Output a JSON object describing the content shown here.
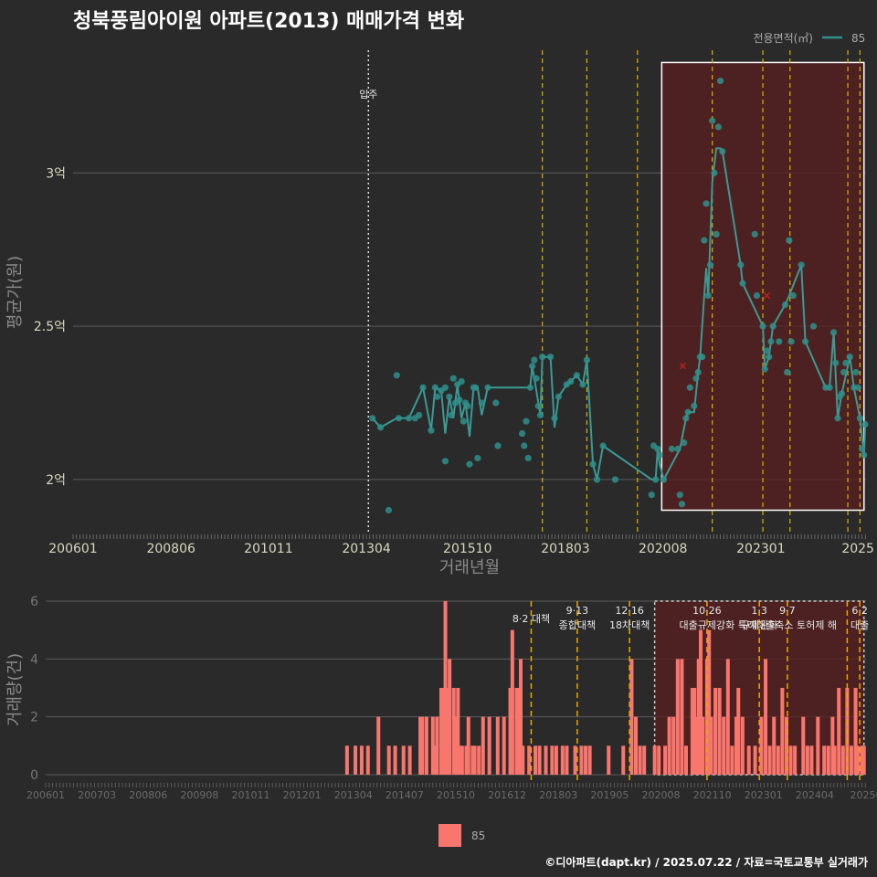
{
  "title": "청북풍림아이원 아파트(2013) 매매가격 변화",
  "legend": {
    "title": "전용면적(㎡)",
    "series_label": "85",
    "line_color": "#2f8f8b"
  },
  "colors": {
    "bg": "#2a2a2b",
    "point": "#2f8f8b",
    "bar": "#f8766d",
    "highlight": "#5a1f1f",
    "vline": "#d4b400",
    "grid": "#5a5a5a"
  },
  "credit": "©디아파트(dapt.kr) / 2025.07.22 / 자료=국토교통부 실거래가",
  "chart_data": [
    {
      "type": "scatter",
      "title": "청북풍림아이원 아파트(2013) 매매가격 변화",
      "xlabel": "거래년월",
      "ylabel": "평균가(원)",
      "x_ticks": [
        "200601",
        "200806",
        "201011",
        "201304",
        "201510",
        "201803",
        "202008",
        "202301",
        "2025"
      ],
      "y_ticks": [
        {
          "v": 2.0,
          "label": "2억"
        },
        {
          "v": 2.5,
          "label": "2.5억"
        },
        {
          "v": 3.0,
          "label": "3억"
        }
      ],
      "ylim": [
        1.83,
        3.4
      ],
      "xlim": [
        2006.0,
        2025.6
      ],
      "move_in": {
        "x": 2013.3,
        "label": "입주"
      },
      "policy_lines": [
        2017.6,
        2018.7,
        2019.95,
        2021.8,
        2023.05,
        2023.72,
        2025.15,
        2025.45
      ],
      "highlight": {
        "x0": 2020.55,
        "x1": 2025.55,
        "y0": 1.9,
        "y1": 3.36
      },
      "red_marks": [
        {
          "x": 2021.07,
          "y": 2.37
        },
        {
          "x": 2023.15,
          "y": 2.6
        }
      ],
      "points": [
        [
          2013.4,
          2.2
        ],
        [
          2013.6,
          2.17
        ],
        [
          2013.8,
          1.9
        ],
        [
          2014.0,
          2.34
        ],
        [
          2014.05,
          2.2
        ],
        [
          2014.3,
          2.2
        ],
        [
          2014.45,
          2.2
        ],
        [
          2014.55,
          2.21
        ],
        [
          2014.65,
          2.3
        ],
        [
          2014.85,
          2.16
        ],
        [
          2014.95,
          2.3
        ],
        [
          2015.0,
          2.27
        ],
        [
          2015.1,
          2.29
        ],
        [
          2015.2,
          2.3
        ],
        [
          2015.2,
          2.06
        ],
        [
          2015.3,
          2.27
        ],
        [
          2015.35,
          2.21
        ],
        [
          2015.4,
          2.33
        ],
        [
          2015.45,
          2.25
        ],
        [
          2015.5,
          2.31
        ],
        [
          2015.55,
          2.26
        ],
        [
          2015.6,
          2.32
        ],
        [
          2015.65,
          2.19
        ],
        [
          2015.7,
          2.25
        ],
        [
          2015.75,
          2.24
        ],
        [
          2015.8,
          2.05
        ],
        [
          2015.9,
          2.3
        ],
        [
          2015.95,
          2.3
        ],
        [
          2016.0,
          2.07
        ],
        [
          2016.1,
          2.25
        ],
        [
          2016.25,
          2.3
        ],
        [
          2016.5,
          2.11
        ],
        [
          2016.45,
          2.25
        ],
        [
          2017.1,
          2.15
        ],
        [
          2017.15,
          2.11
        ],
        [
          2017.25,
          2.07
        ],
        [
          2017.2,
          2.19
        ],
        [
          2017.3,
          2.3
        ],
        [
          2017.35,
          2.37
        ],
        [
          2017.4,
          2.39
        ],
        [
          2017.45,
          2.33
        ],
        [
          2017.5,
          2.24
        ],
        [
          2017.55,
          2.21
        ],
        [
          2017.6,
          2.4
        ],
        [
          2017.8,
          2.4
        ],
        [
          2017.9,
          2.2
        ],
        [
          2018.0,
          2.27
        ],
        [
          2018.2,
          2.31
        ],
        [
          2018.3,
          2.32
        ],
        [
          2018.45,
          2.34
        ],
        [
          2018.6,
          2.31
        ],
        [
          2018.7,
          2.39
        ],
        [
          2018.85,
          2.05
        ],
        [
          2018.95,
          2.0
        ],
        [
          2019.1,
          2.11
        ],
        [
          2019.4,
          2.0
        ],
        [
          2020.3,
          1.95
        ],
        [
          2020.35,
          2.11
        ],
        [
          2020.4,
          2.0
        ],
        [
          2020.45,
          2.1
        ],
        [
          2020.5,
          2.08
        ],
        [
          2020.6,
          2.0
        ],
        [
          2020.8,
          2.1
        ],
        [
          2020.95,
          2.1
        ],
        [
          2021.0,
          1.95
        ],
        [
          2021.05,
          1.92
        ],
        [
          2021.1,
          2.12
        ],
        [
          2021.15,
          2.2
        ],
        [
          2021.2,
          2.22
        ],
        [
          2021.25,
          2.3
        ],
        [
          2021.35,
          2.24
        ],
        [
          2021.4,
          2.33
        ],
        [
          2021.45,
          2.35
        ],
        [
          2021.5,
          2.4
        ],
        [
          2021.55,
          2.4
        ],
        [
          2021.6,
          2.78
        ],
        [
          2021.65,
          2.9
        ],
        [
          2021.7,
          2.6
        ],
        [
          2021.75,
          2.7
        ],
        [
          2021.8,
          3.17
        ],
        [
          2021.85,
          3.0
        ],
        [
          2021.9,
          2.8
        ],
        [
          2021.95,
          3.15
        ],
        [
          2022.0,
          3.3
        ],
        [
          2022.05,
          3.07
        ],
        [
          2022.5,
          2.7
        ],
        [
          2022.55,
          2.64
        ],
        [
          2022.85,
          2.8
        ],
        [
          2022.9,
          2.6
        ],
        [
          2023.05,
          2.5
        ],
        [
          2023.1,
          2.36
        ],
        [
          2023.15,
          2.42
        ],
        [
          2023.2,
          2.4
        ],
        [
          2023.25,
          2.45
        ],
        [
          2023.3,
          2.5
        ],
        [
          2023.45,
          2.45
        ],
        [
          2023.6,
          2.57
        ],
        [
          2023.65,
          2.35
        ],
        [
          2023.7,
          2.78
        ],
        [
          2023.75,
          2.45
        ],
        [
          2023.8,
          2.6
        ],
        [
          2024.0,
          2.7
        ],
        [
          2024.1,
          2.45
        ],
        [
          2024.3,
          2.5
        ],
        [
          2024.6,
          2.3
        ],
        [
          2024.7,
          2.3
        ],
        [
          2024.8,
          2.48
        ],
        [
          2024.85,
          2.38
        ],
        [
          2024.9,
          2.2
        ],
        [
          2024.95,
          2.27
        ],
        [
          2025.0,
          2.28
        ],
        [
          2025.05,
          2.35
        ],
        [
          2025.1,
          2.38
        ],
        [
          2025.2,
          2.4
        ],
        [
          2025.3,
          2.3
        ],
        [
          2025.35,
          2.35
        ],
        [
          2025.4,
          2.3
        ],
        [
          2025.45,
          2.2
        ],
        [
          2025.5,
          2.1
        ],
        [
          2025.55,
          2.08
        ],
        [
          2025.58,
          2.18
        ]
      ],
      "line": [
        [
          2013.4,
          2.2
        ],
        [
          2013.6,
          2.17
        ],
        [
          2014.0,
          2.2
        ],
        [
          2014.3,
          2.2
        ],
        [
          2014.65,
          2.3
        ],
        [
          2014.85,
          2.16
        ],
        [
          2014.95,
          2.3
        ],
        [
          2015.1,
          2.29
        ],
        [
          2015.2,
          2.15
        ],
        [
          2015.3,
          2.27
        ],
        [
          2015.4,
          2.2
        ],
        [
          2015.5,
          2.31
        ],
        [
          2015.6,
          2.2
        ],
        [
          2015.7,
          2.25
        ],
        [
          2015.8,
          2.14
        ],
        [
          2015.9,
          2.3
        ],
        [
          2016.0,
          2.3
        ],
        [
          2016.1,
          2.21
        ],
        [
          2016.25,
          2.3
        ],
        [
          2017.3,
          2.3
        ],
        [
          2017.35,
          2.37
        ],
        [
          2017.45,
          2.29
        ],
        [
          2017.55,
          2.21
        ],
        [
          2017.6,
          2.4
        ],
        [
          2017.8,
          2.4
        ],
        [
          2017.9,
          2.17
        ],
        [
          2018.0,
          2.27
        ],
        [
          2018.2,
          2.31
        ],
        [
          2018.3,
          2.32
        ],
        [
          2018.45,
          2.34
        ],
        [
          2018.6,
          2.31
        ],
        [
          2018.7,
          2.39
        ],
        [
          2018.85,
          2.05
        ],
        [
          2018.95,
          2.0
        ],
        [
          2019.1,
          2.11
        ],
        [
          2020.3,
          2.0
        ],
        [
          2020.4,
          2.0
        ],
        [
          2020.45,
          2.1
        ],
        [
          2020.5,
          2.05
        ],
        [
          2020.6,
          2.0
        ],
        [
          2021.0,
          2.1
        ],
        [
          2021.15,
          2.2
        ],
        [
          2021.2,
          2.22
        ],
        [
          2021.35,
          2.22
        ],
        [
          2021.45,
          2.35
        ],
        [
          2021.5,
          2.4
        ],
        [
          2021.6,
          2.6
        ],
        [
          2021.65,
          2.69
        ],
        [
          2021.7,
          2.6
        ],
        [
          2021.8,
          2.97
        ],
        [
          2021.9,
          3.08
        ],
        [
          2022.0,
          3.08
        ],
        [
          2022.05,
          3.07
        ],
        [
          2022.5,
          2.7
        ],
        [
          2022.55,
          2.64
        ],
        [
          2023.05,
          2.5
        ],
        [
          2023.1,
          2.36
        ],
        [
          2023.2,
          2.4
        ],
        [
          2023.3,
          2.5
        ],
        [
          2023.6,
          2.57
        ],
        [
          2023.7,
          2.6
        ],
        [
          2024.0,
          2.7
        ],
        [
          2024.1,
          2.45
        ],
        [
          2024.6,
          2.3
        ],
        [
          2024.7,
          2.3
        ],
        [
          2024.8,
          2.48
        ],
        [
          2024.9,
          2.2
        ],
        [
          2025.0,
          2.28
        ],
        [
          2025.2,
          2.4
        ],
        [
          2025.3,
          2.3
        ],
        [
          2025.45,
          2.2
        ],
        [
          2025.55,
          2.08
        ],
        [
          2025.58,
          2.18
        ]
      ]
    },
    {
      "type": "bar",
      "xlabel": "",
      "ylabel": "거래량(건)",
      "x_ticks": [
        "200601",
        "200703",
        "200806",
        "200908",
        "201011",
        "201201",
        "201304",
        "201407",
        "201510",
        "201612",
        "201803",
        "201905",
        "202008",
        "202110",
        "202301",
        "202404",
        "20250"
      ],
      "y_ticks": [
        0,
        2,
        4,
        6
      ],
      "ylim": [
        0,
        6
      ],
      "xlim": [
        2006.0,
        2025.6
      ],
      "highlight": {
        "x0": 2020.55,
        "x1": 2025.55,
        "y0": 0,
        "y1": 6
      },
      "policy_lines": [
        2017.6,
        2018.7,
        2019.95,
        2021.8,
        2023.05,
        2023.72,
        2025.15,
        2025.45
      ],
      "annotations": [
        {
          "x": 2017.6,
          "lines": [
            "8·2 대책"
          ]
        },
        {
          "x": 2018.7,
          "lines": [
            "9·13",
            "종합대책"
          ]
        },
        {
          "x": 2019.95,
          "lines": [
            "12·16",
            "18차대책"
          ]
        },
        {
          "x": 2021.8,
          "lines": [
            "10·26",
            "대출규제강화"
          ]
        },
        {
          "x": 2023.05,
          "lines": [
            "1·3",
            "규제완화"
          ]
        },
        {
          "x": 2023.72,
          "lines": [
            "9·7",
            "특례대출축소 토허제 해"
          ]
        },
        {
          "x": 2025.45,
          "lines": [
            "6·2",
            "대출"
          ]
        }
      ],
      "bars": [
        [
          2013.2,
          1
        ],
        [
          2013.4,
          1
        ],
        [
          2013.55,
          1
        ],
        [
          2013.7,
          1
        ],
        [
          2013.95,
          2
        ],
        [
          2014.2,
          1
        ],
        [
          2014.35,
          1
        ],
        [
          2014.55,
          1
        ],
        [
          2014.7,
          1
        ],
        [
          2014.95,
          2
        ],
        [
          2015.0,
          2
        ],
        [
          2015.1,
          2
        ],
        [
          2015.25,
          2
        ],
        [
          2015.3,
          1
        ],
        [
          2015.35,
          2
        ],
        [
          2015.45,
          3
        ],
        [
          2015.5,
          3
        ],
        [
          2015.55,
          6
        ],
        [
          2015.6,
          3
        ],
        [
          2015.65,
          4
        ],
        [
          2015.75,
          3
        ],
        [
          2015.8,
          2
        ],
        [
          2015.85,
          3
        ],
        [
          2015.9,
          1
        ],
        [
          2015.95,
          1
        ],
        [
          2016.05,
          1
        ],
        [
          2016.1,
          2
        ],
        [
          2016.2,
          1
        ],
        [
          2016.25,
          1
        ],
        [
          2016.35,
          1
        ],
        [
          2016.45,
          2
        ],
        [
          2016.6,
          2
        ],
        [
          2016.8,
          2
        ],
        [
          2016.95,
          2
        ],
        [
          2017.1,
          3
        ],
        [
          2017.15,
          5
        ],
        [
          2017.25,
          3
        ],
        [
          2017.3,
          3
        ],
        [
          2017.35,
          4
        ],
        [
          2017.4,
          1
        ],
        [
          2017.55,
          1
        ],
        [
          2017.7,
          1
        ],
        [
          2017.8,
          1
        ],
        [
          2017.95,
          1
        ],
        [
          2018.1,
          1
        ],
        [
          2018.2,
          1
        ],
        [
          2018.35,
          1
        ],
        [
          2018.45,
          1
        ],
        [
          2018.65,
          1
        ],
        [
          2018.8,
          1
        ],
        [
          2018.9,
          1
        ],
        [
          2019.0,
          1
        ],
        [
          2019.45,
          1
        ],
        [
          2019.8,
          1
        ],
        [
          2020.0,
          4
        ],
        [
          2020.1,
          2
        ],
        [
          2020.2,
          1
        ],
        [
          2020.3,
          1
        ],
        [
          2020.55,
          1
        ],
        [
          2020.65,
          1
        ],
        [
          2020.8,
          1
        ],
        [
          2020.9,
          2
        ],
        [
          2021.0,
          2
        ],
        [
          2021.1,
          4
        ],
        [
          2021.2,
          4
        ],
        [
          2021.3,
          1
        ],
        [
          2021.45,
          3
        ],
        [
          2021.5,
          3
        ],
        [
          2021.55,
          2
        ],
        [
          2021.6,
          4
        ],
        [
          2021.65,
          5
        ],
        [
          2021.7,
          2
        ],
        [
          2021.8,
          4
        ],
        [
          2021.85,
          5
        ],
        [
          2021.9,
          2
        ],
        [
          2022.0,
          3
        ],
        [
          2022.1,
          3
        ],
        [
          2022.2,
          2
        ],
        [
          2022.3,
          4
        ],
        [
          2022.4,
          1
        ],
        [
          2022.5,
          2
        ],
        [
          2022.55,
          3
        ],
        [
          2022.65,
          2
        ],
        [
          2022.8,
          1
        ],
        [
          2022.95,
          1
        ],
        [
          2023.1,
          2
        ],
        [
          2023.2,
          4
        ],
        [
          2023.3,
          1
        ],
        [
          2023.4,
          2
        ],
        [
          2023.5,
          1
        ],
        [
          2023.6,
          3
        ],
        [
          2023.7,
          2
        ],
        [
          2023.8,
          1
        ],
        [
          2023.9,
          1
        ],
        [
          2024.1,
          2
        ],
        [
          2024.2,
          1
        ],
        [
          2024.3,
          1
        ],
        [
          2024.45,
          2
        ],
        [
          2024.6,
          1
        ],
        [
          2024.7,
          1
        ],
        [
          2024.8,
          2
        ],
        [
          2024.85,
          1
        ],
        [
          2024.95,
          3
        ],
        [
          2025.05,
          1
        ],
        [
          2025.15,
          3
        ],
        [
          2025.25,
          1
        ],
        [
          2025.35,
          3
        ],
        [
          2025.4,
          1
        ],
        [
          2025.5,
          1
        ],
        [
          2025.55,
          1
        ]
      ]
    }
  ],
  "bottom_legend": {
    "label": "85",
    "color": "#f8766d"
  }
}
